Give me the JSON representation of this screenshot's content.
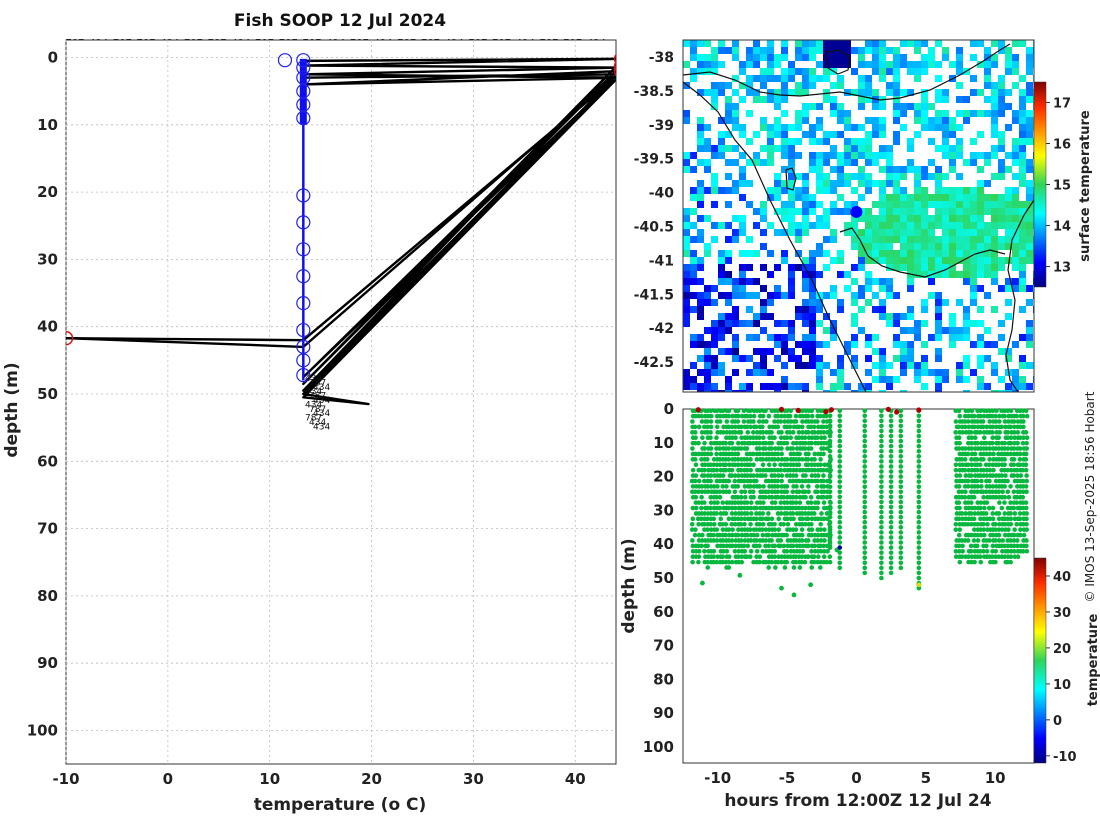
{
  "title": "Fish SOOP 12 Jul 2024",
  "credit": "© IMOS 13-Sep-2025 18:56 Hobart",
  "top_axis_labels": [
    "787",
    "434",
    "787",
    "787",
    "434",
    "787",
    "787",
    "434",
    "787",
    "787",
    "787",
    "434",
    "787",
    "434",
    "787",
    "787",
    "434",
    "787",
    "787",
    "434",
    "787",
    "787",
    "434"
  ],
  "chart_data": [
    {
      "type": "line",
      "name": "depth-temperature profile",
      "xlabel": "temperature (o C)",
      "ylabel": "depth (m)",
      "xlim": [
        -10,
        44
      ],
      "ylim": [
        105,
        0
      ],
      "xticks": [
        -10,
        0,
        10,
        20,
        30,
        40
      ],
      "yticks": [
        0,
        10,
        20,
        30,
        40,
        50,
        60,
        70,
        80,
        90,
        100
      ],
      "grid": true,
      "trace": [
        [
          13.3,
          0.5
        ],
        [
          44.5,
          0.2
        ],
        [
          13.3,
          1.2
        ],
        [
          44.5,
          1.5
        ],
        [
          13.3,
          2.5
        ],
        [
          44.5,
          3.0
        ],
        [
          13.3,
          4.0
        ],
        [
          44.5,
          2.0
        ],
        [
          13.3,
          43.0
        ],
        [
          -10,
          41.7
        ],
        [
          13.3,
          42.0
        ],
        [
          44.5,
          2.3
        ],
        [
          13.3,
          47.5
        ],
        [
          44.5,
          1.3
        ],
        [
          13.3,
          48.5
        ],
        [
          44.5,
          0.6
        ],
        [
          13.3,
          49.5
        ],
        [
          44.5,
          2.0
        ],
        [
          13.3,
          50.0
        ],
        [
          19.7,
          51.5
        ],
        [
          13.3,
          50.5
        ],
        [
          44.5,
          2.5
        ],
        [
          13.3,
          3.0
        ]
      ],
      "good_points": [
        [
          11.5,
          0.4
        ],
        [
          13.3,
          0.4
        ],
        [
          13.3,
          1.5
        ],
        [
          13.3,
          3
        ],
        [
          13.3,
          5
        ],
        [
          13.3,
          7
        ],
        [
          13.3,
          9
        ],
        [
          13.3,
          20.5
        ],
        [
          13.3,
          24.5
        ],
        [
          13.3,
          28.5
        ],
        [
          13.3,
          32.5
        ],
        [
          13.3,
          36.5
        ],
        [
          13.3,
          40.5
        ],
        [
          13.3,
          43
        ],
        [
          13.3,
          45
        ],
        [
          13.3,
          47.2
        ]
      ],
      "flagged_points": [
        [
          44.5,
          0.2
        ],
        [
          44.5,
          1.3
        ],
        [
          44.5,
          2.0
        ],
        [
          -10,
          41.7
        ]
      ],
      "cluster_labels": [
        "434",
        "787",
        "434",
        "434",
        "787",
        "434",
        "434",
        "787",
        "434",
        "787",
        "434",
        "434"
      ]
    },
    {
      "type": "heatmap",
      "name": "sea surface temperature map",
      "yticks": [
        "-38",
        "-38.5",
        "-39",
        "-39.5",
        "-40",
        "-40.5",
        "-41",
        "-41.5",
        "-42",
        "-42.5"
      ],
      "lat_range": [
        -42.8,
        -37.8
      ],
      "ship_position": {
        "lon": 148.6,
        "lat": -40.3
      },
      "colorbar": {
        "label": "surface temperature",
        "ticks": [
          "13",
          "14",
          "15",
          "16",
          "17"
        ],
        "range": [
          12.5,
          17.5
        ]
      }
    },
    {
      "type": "scatter",
      "name": "depth vs time",
      "xlabel": "hours from 12:00Z 12 Jul 24",
      "ylabel": "depth (m)",
      "xlim": [
        -12.5,
        12.8
      ],
      "ylim": [
        105,
        0
      ],
      "xticks": [
        -10,
        -5,
        0,
        5,
        10
      ],
      "yticks": [
        0,
        10,
        20,
        30,
        40,
        50,
        60,
        70,
        80,
        90,
        100
      ],
      "bands": [
        {
          "from": -11.8,
          "to": -1.8,
          "max_depth": 48
        },
        {
          "from": 7.2,
          "to": 12.4,
          "max_depth": 47
        }
      ],
      "casts": [
        {
          "hour": -1.9,
          "max_depth": 42
        },
        {
          "hour": -1.2,
          "max_depth": 47
        },
        {
          "hour": 0.6,
          "max_depth": 49
        },
        {
          "hour": 1.8,
          "max_depth": 50
        },
        {
          "hour": 2.5,
          "max_depth": 49
        },
        {
          "hour": 3.2,
          "max_depth": 48
        },
        {
          "hour": 4.5,
          "max_depth": 53
        }
      ],
      "outliers": [
        [
          -11.1,
          51.5
        ],
        [
          -8.4,
          49.2
        ],
        [
          -5.4,
          53
        ],
        [
          -4.5,
          55
        ],
        [
          -3.3,
          52
        ],
        [
          -1.4,
          41.7
        ],
        [
          4.5,
          52
        ]
      ],
      "flagged_surface": [
        [
          -11.4,
          0.2
        ],
        [
          -5.4,
          0.1
        ],
        [
          -4.2,
          0.4
        ],
        [
          -2.2,
          0.8
        ],
        [
          -1.8,
          0.2
        ],
        [
          2.3,
          0.1
        ],
        [
          2.9,
          0.9
        ],
        [
          4.5,
          0.3
        ]
      ],
      "colorbar": {
        "label": "temperature",
        "ticks": [
          "-10",
          "0",
          "10",
          "20",
          "30",
          "40"
        ],
        "range": [
          -12,
          45
        ]
      }
    }
  ]
}
